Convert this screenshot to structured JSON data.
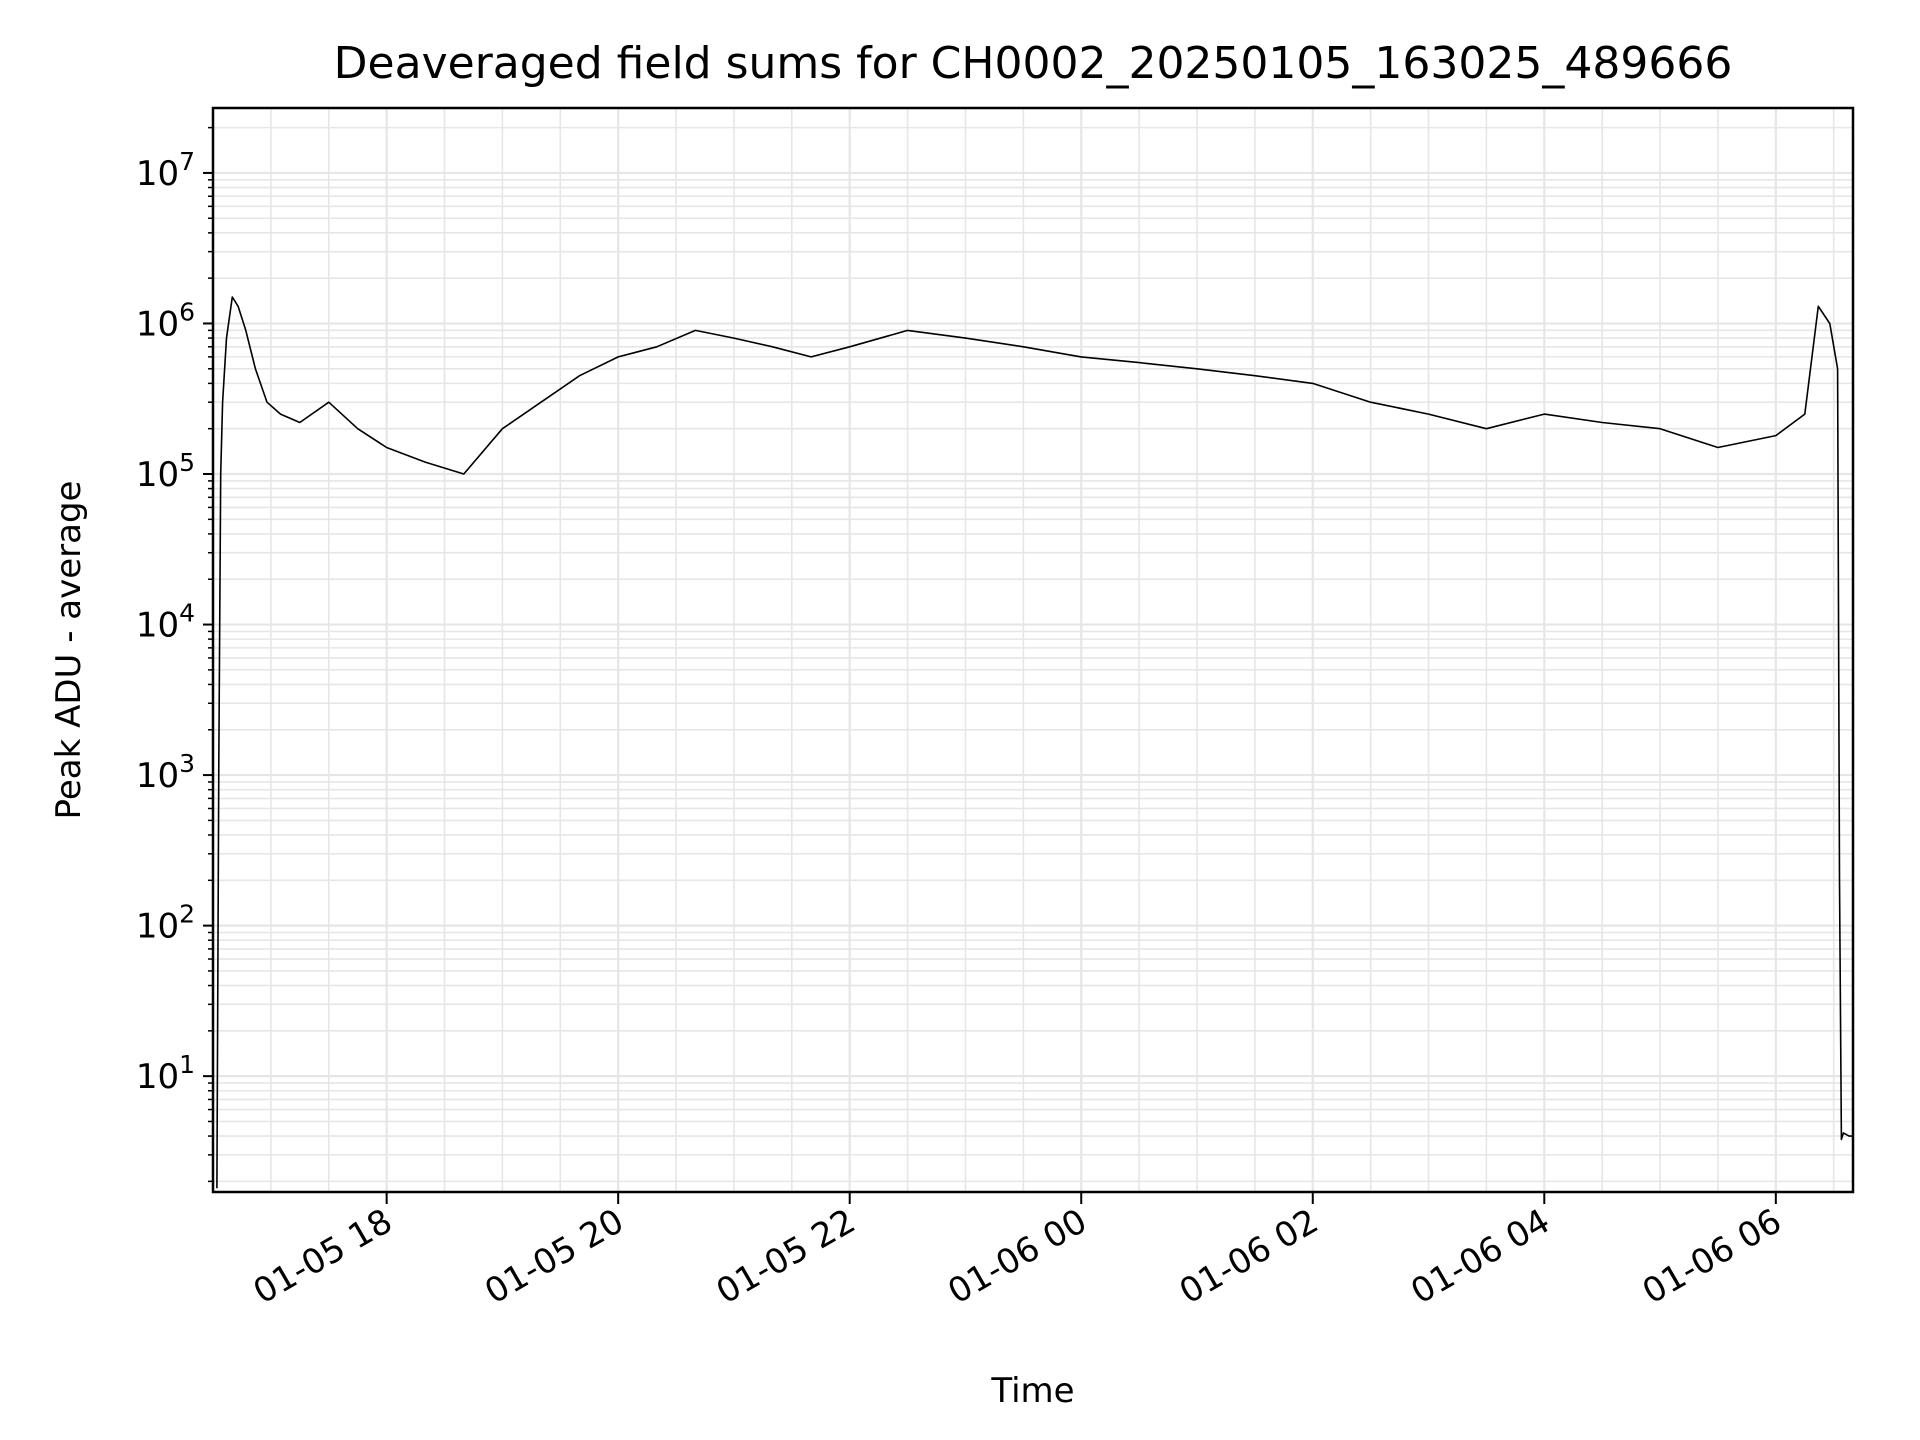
{
  "chart_data": {
    "type": "line",
    "title": "Deaveraged field sums for CH0002_20250105_163025_489666",
    "xlabel": "Time",
    "ylabel": "Peak ADU - average",
    "yscale": "log",
    "ylim": [
      1.7,
      27000000
    ],
    "xlim": [
      "2025-01-05 16:30",
      "2025-01-06 06:40"
    ],
    "grid": "major and minor on both axes",
    "x_tick_labels": [
      "01-05 18",
      "01-05 20",
      "01-05 22",
      "01-06 00",
      "01-06 02",
      "01-06 04",
      "01-06 06"
    ],
    "x_tick_times": [
      "2025-01-05 18:00",
      "2025-01-05 20:00",
      "2025-01-05 22:00",
      "2025-01-06 00:00",
      "2025-01-06 02:00",
      "2025-01-06 04:00",
      "2025-01-06 06:00"
    ],
    "y_ticks": [
      10,
      100,
      1000,
      10000,
      100000,
      1000000,
      10000000
    ],
    "line_color": "#000000",
    "series": [
      {
        "x": [
          "2025-01-05 16:32",
          "2025-01-05 16:33",
          "2025-01-05 16:34",
          "2025-01-05 16:35",
          "2025-01-05 16:37",
          "2025-01-05 16:40",
          "2025-01-05 16:43",
          "2025-01-05 16:47",
          "2025-01-05 16:52",
          "2025-01-05 16:58",
          "2025-01-05 17:05",
          "2025-01-05 17:15",
          "2025-01-05 17:30",
          "2025-01-05 17:45",
          "2025-01-05 18:00",
          "2025-01-05 18:20",
          "2025-01-05 18:40",
          "2025-01-05 19:00",
          "2025-01-05 19:20",
          "2025-01-05 19:40",
          "2025-01-05 20:00",
          "2025-01-05 20:20",
          "2025-01-05 20:40",
          "2025-01-05 21:00",
          "2025-01-05 21:20",
          "2025-01-05 21:40",
          "2025-01-05 22:00",
          "2025-01-05 22:30",
          "2025-01-05 23:00",
          "2025-01-05 23:30",
          "2025-01-06 00:00",
          "2025-01-06 00:30",
          "2025-01-06 01:00",
          "2025-01-06 01:30",
          "2025-01-06 02:00",
          "2025-01-06 02:30",
          "2025-01-06 03:00",
          "2025-01-06 03:30",
          "2025-01-06 04:00",
          "2025-01-06 04:30",
          "2025-01-06 05:00",
          "2025-01-06 05:30",
          "2025-01-06 06:00",
          "2025-01-06 06:15",
          "2025-01-06 06:22",
          "2025-01-06 06:28",
          "2025-01-06 06:32",
          "2025-01-06 06:33",
          "2025-01-06 06:34",
          "2025-01-06 06:35",
          "2025-01-06 06:38",
          "2025-01-06 06:40"
        ],
        "y": [
          1.8,
          1200,
          100000,
          300000,
          800000,
          1500000,
          1300000,
          900000,
          500000,
          300000,
          250000,
          220000,
          300000,
          200000,
          150000,
          120000,
          100000,
          200000,
          300000,
          450000,
          600000,
          700000,
          900000,
          800000,
          700000,
          600000,
          700000,
          900000,
          800000,
          700000,
          600000,
          550000,
          500000,
          450000,
          400000,
          300000,
          250000,
          200000,
          250000,
          220000,
          200000,
          150000,
          180000,
          250000,
          1300000,
          1000000,
          500000,
          200,
          3.8,
          4.2,
          4.0,
          4.0
        ]
      }
    ]
  }
}
